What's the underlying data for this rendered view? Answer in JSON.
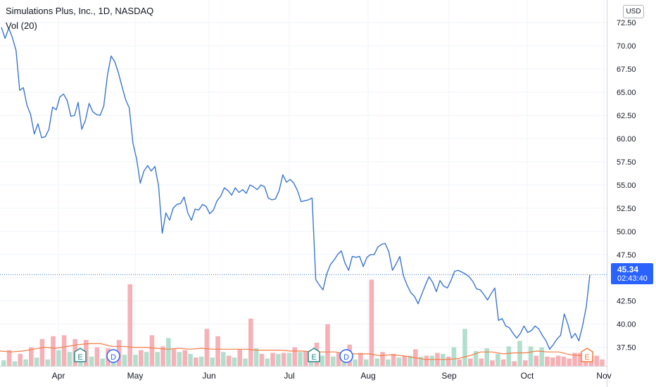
{
  "header": {
    "title": "Simulations Plus, Inc., 1D, NASDAQ",
    "volume_label": "Vol (20)"
  },
  "currency_button": "USD",
  "last_price": {
    "value": "45.34",
    "countdown": "02:43:40"
  },
  "colors": {
    "price_line": "#3a76d0",
    "volume_up": "#b2dfcd",
    "volume_down": "#f7b1b6",
    "volume_ma": "#f57c42",
    "badge": "#2962ff",
    "earnings_marker": "#2a8b8b",
    "dividend_marker": "#2962ff",
    "upcoming_earnings": "#f57c42"
  },
  "chart_data": {
    "type": "line",
    "x_axis": {
      "ticks": [
        "Apr",
        "May",
        "Jun",
        "Jul",
        "Aug",
        "Sep",
        "Oct",
        "Nov"
      ]
    },
    "y_axis": {
      "ticks": [
        "37.50",
        "40.00",
        "42.50",
        "45.00",
        "47.50",
        "50.00",
        "52.50",
        "55.00",
        "57.50",
        "60.00",
        "62.50",
        "65.00",
        "67.50",
        "70.00",
        "72.50"
      ],
      "range": [
        35.5,
        73.5
      ],
      "position": "right"
    },
    "series": [
      {
        "values": [
          72.0,
          70.8,
          71.9,
          70.9,
          69.5,
          65.2,
          65.5,
          63.6,
          62.6,
          60.5,
          61.6,
          60.1,
          60.2,
          61.0,
          63.4,
          63.1,
          64.5,
          64.8,
          64.1,
          62.4,
          62.5,
          63.9,
          61.0,
          62.0,
          63.8,
          62.9,
          62.6,
          62.5,
          63.5,
          66.8,
          68.9,
          68.3,
          67.1,
          65.6,
          64.2,
          63.3,
          59.5,
          57.8,
          55.2,
          56.5,
          57.1,
          56.5,
          57.0,
          54.9,
          49.8,
          52.0,
          51.2,
          52.5,
          52.9,
          53.0,
          53.7,
          52.0,
          51.2,
          52.4,
          52.3,
          52.9,
          52.7,
          51.9,
          52.3,
          53.3,
          53.8,
          54.7,
          54.4,
          53.9,
          54.7,
          54.2,
          54.5,
          54.1,
          55.0,
          54.8,
          54.5,
          55.0,
          54.8,
          53.6,
          53.4,
          53.5,
          54.4,
          56.1,
          55.3,
          55.6,
          55.2,
          54.4,
          53.2,
          53.3,
          53.4,
          53.6,
          44.8,
          44.2,
          43.7,
          45.4,
          46.4,
          46.9,
          47.5,
          47.9,
          46.6,
          45.8,
          47.3,
          47.2,
          47.3,
          46.2,
          47.2,
          47.5,
          47.5,
          48.3,
          48.6,
          48.7,
          47.8,
          45.8,
          46.5,
          47.3,
          45.2,
          44.2,
          43.4,
          43.0,
          42.2,
          43.2,
          44.2,
          45.1,
          44.5,
          43.5,
          44.7,
          44.1,
          43.9,
          44.7,
          45.7,
          45.8,
          45.6,
          45.4,
          45.1,
          44.6,
          43.8,
          43.7,
          43.2,
          42.6,
          43.3,
          43.9,
          40.4,
          40.6,
          39.8,
          39.6,
          39.0,
          38.5,
          39.0,
          39.8,
          39.1,
          39.3,
          39.8,
          39.5,
          38.8,
          38.2,
          37.3,
          37.8,
          38.4,
          38.8,
          41.1,
          40.0,
          38.5,
          39.0,
          38.2,
          39.8,
          41.8,
          45.3
        ],
        "volume_ma": [
          37.1,
          37.0,
          37.1,
          37.3,
          37.5,
          37.4,
          37.6,
          37.8,
          37.9,
          37.9,
          37.6,
          37.6,
          37.5,
          37.5,
          37.4,
          37.3,
          37.4,
          37.3,
          37.4,
          37.3,
          37.3,
          37.3,
          37.3,
          37.2,
          37.2,
          37.2,
          37.1,
          37.1,
          37.0,
          37.0,
          37.0,
          36.8,
          36.8,
          36.8,
          36.6,
          36.7,
          36.6,
          36.4,
          36.2,
          36.2,
          36.2,
          36.3,
          36.6,
          37.0,
          37.0,
          36.8,
          36.9,
          36.9,
          37.1,
          37.0,
          37.0,
          36.7,
          36.6,
          36.7
        ],
        "volume_up": [
          36.1,
          36.0,
          36.2,
          36.4,
          36.2,
          37.2,
          37.0,
          37.2,
          36.5,
          36.3,
          36.6,
          36.7,
          36.7,
          37.0,
          37.0,
          38.5,
          37.0,
          36.8,
          36.5,
          36.4,
          37.0,
          36.4,
          36.3,
          37.4,
          36.3,
          36.8,
          36.9,
          37.0,
          36.7,
          36.6,
          36.5,
          36.7,
          36.2,
          36.2,
          36.3,
          36.2,
          36.4,
          36.6,
          36.5,
          36.6,
          36.8,
          37.5,
          39.5,
          37.1,
          37.4,
          36.8,
          37.6,
          38.2,
          37.6,
          37.5
        ],
        "volume_down": [
          37.2,
          36.8,
          37.5,
          38.4,
          38.7,
          38.8,
          38.4,
          38.3,
          37.5,
          37.4,
          38.3,
          44.3,
          37.2,
          38.8,
          37.6,
          37.3,
          37.2,
          36.4,
          39.5,
          38.7,
          36.6,
          37.3,
          40.6,
          36.8,
          36.9,
          36.9,
          37.5,
          37.1,
          38.0,
          40.0,
          36.9,
          37.8,
          36.9,
          44.8,
          37.0,
          36.8,
          36.6,
          37.3,
          36.6,
          36.9,
          36.5,
          36.2,
          36.3,
          36.3,
          36.1,
          36.2,
          36.0,
          36.1,
          36.6,
          36.5,
          36.4,
          36.6,
          36.5,
          36.3,
          36.9,
          36.9,
          37.1,
          36.6,
          36.6,
          36.2
        ]
      }
    ],
    "event_markers": [
      "E",
      "D",
      "E",
      "D",
      "E"
    ],
    "grid": true,
    "last_value": 45.34
  }
}
